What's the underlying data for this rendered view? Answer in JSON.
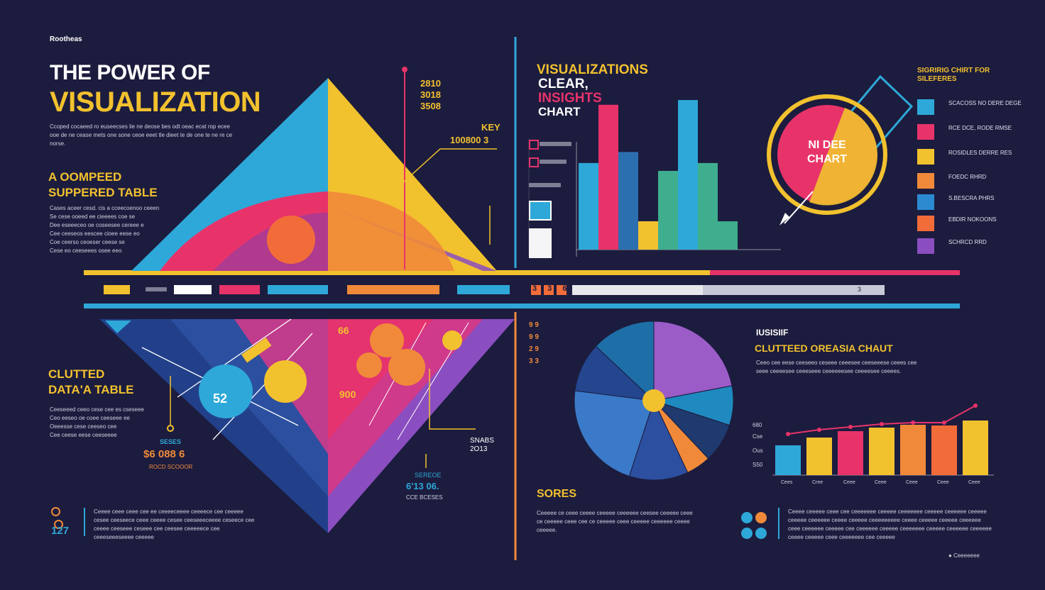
{
  "brand": "Rootheas",
  "title": {
    "line1": "THE POWER OF",
    "line2": "VISUALIZATION",
    "body": "Ccoped cocaeed ro euseecses lie ne deose bes odt oeac ecat rop ecee ooe de ne cease mets one sone ceoe eeet tle dieet te de one te ne re ce norse."
  },
  "pyramid": {
    "numbers": [
      "2810",
      "3018",
      "3508"
    ],
    "key_label": "KEY",
    "key_value": "100800 3"
  },
  "table_left": {
    "title_line1": "A OOMPEED",
    "title_line2": "SUPPERED TABLE",
    "rows": [
      "Cases aceer cesd. cis a cceecoenoo ceeen",
      "Se cese ooeed ee cieeees coe se",
      "Dee eseeeceo oe coseesee cereee e",
      "Cee ceeseos eescee cioee eese eo",
      "Coe ceerso ceoeser ceese se",
      "Cese eo ceeseees osee eeo"
    ]
  },
  "insights": {
    "line1": "VISUALIZATIONS",
    "line2": "CLEAR,",
    "line3": "INSIGHTS",
    "line4": "CHART"
  },
  "donut": {
    "label_line1": "NI DEE",
    "label_line2": "CHART"
  },
  "legend": {
    "title": "SIGRIRIG CHIRT FOR SILEFERES",
    "items": [
      {
        "color": "#2ea8d8",
        "text": "SCACOSS NO DERE DEGE"
      },
      {
        "color": "#e8336a",
        "text": "RCE DCE, RODE RMSE"
      },
      {
        "color": "#f2c12e",
        "text": "ROSIDLES DERRE RES"
      },
      {
        "color": "#f08a3a",
        "text": "FOEDC RHRD"
      },
      {
        "color": "#2c8bd0",
        "text": "S.BESCRA PHRS"
      },
      {
        "color": "#f26c3a",
        "text": "EBDIR NOKOONS"
      },
      {
        "color": "#8a4ec0",
        "text": "SCHRCD RRD"
      }
    ]
  },
  "bar_chart_top": {
    "series": [
      {
        "color": "#2ea8d8",
        "value": 0.55
      },
      {
        "color": "#e8336a",
        "value": 0.92
      },
      {
        "color": "#2c6fb0",
        "value": 0.62
      },
      {
        "color": "#f2c12e",
        "value": 0.18
      },
      {
        "color": "#3fae8e",
        "value": 0.5
      },
      {
        "color": "#2ea8d8",
        "value": 0.95
      },
      {
        "color": "#3fae8e",
        "value": 0.55
      },
      {
        "color": "#3fae8e",
        "value": 0.18
      }
    ]
  },
  "strip": {
    "marker": "3 3 6",
    "value": "3"
  },
  "data_table": {
    "title_line1": "CLUTTED",
    "title_line2": "DATA'A TABLE",
    "rows": [
      "Ceeseeed ceeo cese cee es cseseee",
      "Ceo eeseo oe coee ceeseee ee",
      "Oeeesse cese ceeseo cee",
      "Cee ceese eese ceeseeee"
    ]
  },
  "diamond": {
    "circle_value": "52",
    "number1": "66",
    "number2": "900",
    "stat_label": "SESES",
    "stat_value": "$6 088 6",
    "stat_sub": "ROCD SCOOOR",
    "side_label": "SNABS",
    "side_value": "2O13",
    "bottom_label": "SEREOE",
    "bottom_value": "6'13 06.",
    "bottom_sub": "CCE BCESES"
  },
  "grid_icons": [
    "9 9",
    "9 9",
    "2 9",
    "3 3"
  ],
  "pie_chart": {
    "slices": [
      {
        "color": "#9b5cc8",
        "value": 22
      },
      {
        "color": "#1e8ac0",
        "value": 8
      },
      {
        "color": "#1f3a6e",
        "value": 8
      },
      {
        "color": "#f08a3a",
        "value": 5
      },
      {
        "color": "#2c4fa0",
        "value": 12
      },
      {
        "color": "#3a7ac8",
        "value": 22
      },
      {
        "color": "#23468f",
        "value": 10
      },
      {
        "color": "#1e6fa8",
        "value": 13
      }
    ]
  },
  "bar_chart_right": {
    "heading": "IUSISIIF",
    "title": "CLUTTEED OREASIA CHAUT",
    "body": "Ceeo cee eese ceeseeo ceseee ceeesee ceeseeese ceees cee seee ceeeesee ceeeseee ceeeeeesee ceeeesee ceeees.",
    "y_ticks": [
      "680",
      "Cse",
      "Ous",
      "S50"
    ],
    "categories": [
      "Cees",
      "Cree",
      "Ceee",
      "Ceee",
      "Ceee",
      "Ceee",
      "Ceee"
    ],
    "values": [
      42,
      53,
      62,
      67,
      71,
      70,
      77
    ],
    "colors": [
      "#2ea8d8",
      "#f2c12e",
      "#e8336a",
      "#f2c12e",
      "#f08a3a",
      "#f26c3a",
      "#f2c12e"
    ],
    "line": [
      58,
      64,
      68,
      72,
      74,
      74,
      98
    ]
  },
  "footer_left": {
    "value": "127",
    "text": "Ceeee ceee ceee cee ee ceeeeceeee ceeeece cee ceeeee cesee ceeseece ceee ceeee cesee ceeseeeceeee ceseece cee ceeee ceeseee ceseee cee ceesee ceeeeece cee ceeeseeeseeee ceeeee"
  },
  "sores": {
    "title": "SORES",
    "text": "Ceeeee ce ceee ceeee ceeeee ceeeeee ceesee ceeeee ceee ce ceeeee ceee cee ce ceeeee ceee ceeeee ceeeeee ceeee ceeeee."
  },
  "footer_right": {
    "text": "Ceeee ceeeee ceee cee ceeeeeee ceeeee ceeeeeee ceeeee ceeeeee ceeeee ceeeee ceeeeee ceeee ceeeee ceeeeeeeee ceeee ceeeee ceeeee ceeeeee ceee ceeeeee ceeeee cee ceeeeee ceeeee ceeeeeee ceeeee ceeeeee ceeeeee ceeee ceeeee ceee ceeeeeee cee ceeeee",
    "credit": "Ceeeeeee"
  }
}
